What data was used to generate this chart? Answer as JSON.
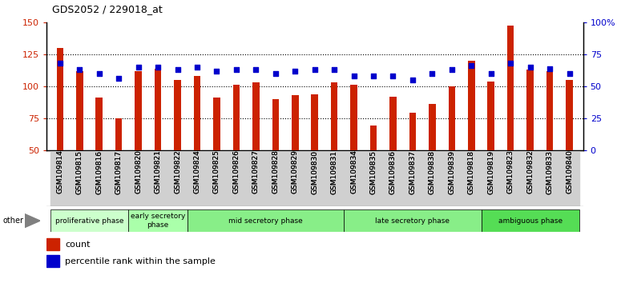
{
  "title": "GDS2052 / 229018_at",
  "samples": [
    "GSM109814",
    "GSM109815",
    "GSM109816",
    "GSM109817",
    "GSM109820",
    "GSM109821",
    "GSM109822",
    "GSM109824",
    "GSM109825",
    "GSM109826",
    "GSM109827",
    "GSM109828",
    "GSM109829",
    "GSM109830",
    "GSM109831",
    "GSM109834",
    "GSM109835",
    "GSM109836",
    "GSM109837",
    "GSM109838",
    "GSM109839",
    "GSM109818",
    "GSM109819",
    "GSM109823",
    "GSM109832",
    "GSM109833",
    "GSM109840"
  ],
  "counts": [
    130,
    112,
    91,
    75,
    112,
    114,
    105,
    108,
    91,
    101,
    103,
    90,
    93,
    94,
    103,
    101,
    69,
    92,
    79,
    86,
    100,
    120,
    104,
    148,
    113,
    112,
    105
  ],
  "percentiles": [
    68,
    63,
    60,
    56,
    65,
    65,
    63,
    65,
    62,
    63,
    63,
    60,
    62,
    63,
    63,
    58,
    58,
    58,
    55,
    60,
    63,
    66,
    60,
    68,
    65,
    64,
    60
  ],
  "bar_color": "#cc2200",
  "dot_color": "#0000cc",
  "ylim_left": [
    50,
    150
  ],
  "ylim_right": [
    0,
    100
  ],
  "yticks_left": [
    50,
    75,
    100,
    125,
    150
  ],
  "yticks_right": [
    0,
    25,
    50,
    75,
    100
  ],
  "yticklabels_right": [
    "0",
    "25",
    "50",
    "75",
    "100%"
  ],
  "grid_lines": [
    75,
    100,
    125
  ],
  "phases": [
    {
      "label": "proliferative phase",
      "start": 0,
      "end": 4,
      "color": "#ccffcc"
    },
    {
      "label": "early secretory\nphase",
      "start": 4,
      "end": 7,
      "color": "#aaffaa"
    },
    {
      "label": "mid secretory phase",
      "start": 7,
      "end": 15,
      "color": "#88ee88"
    },
    {
      "label": "late secretory phase",
      "start": 15,
      "end": 22,
      "color": "#88ee88"
    },
    {
      "label": "ambiguous phase",
      "start": 22,
      "end": 27,
      "color": "#55dd55"
    }
  ],
  "other_label": "other",
  "legend_count_label": "count",
  "legend_percentile_label": "percentile rank within the sample",
  "bg_color": "#ffffff",
  "plot_bg": "#ffffff"
}
